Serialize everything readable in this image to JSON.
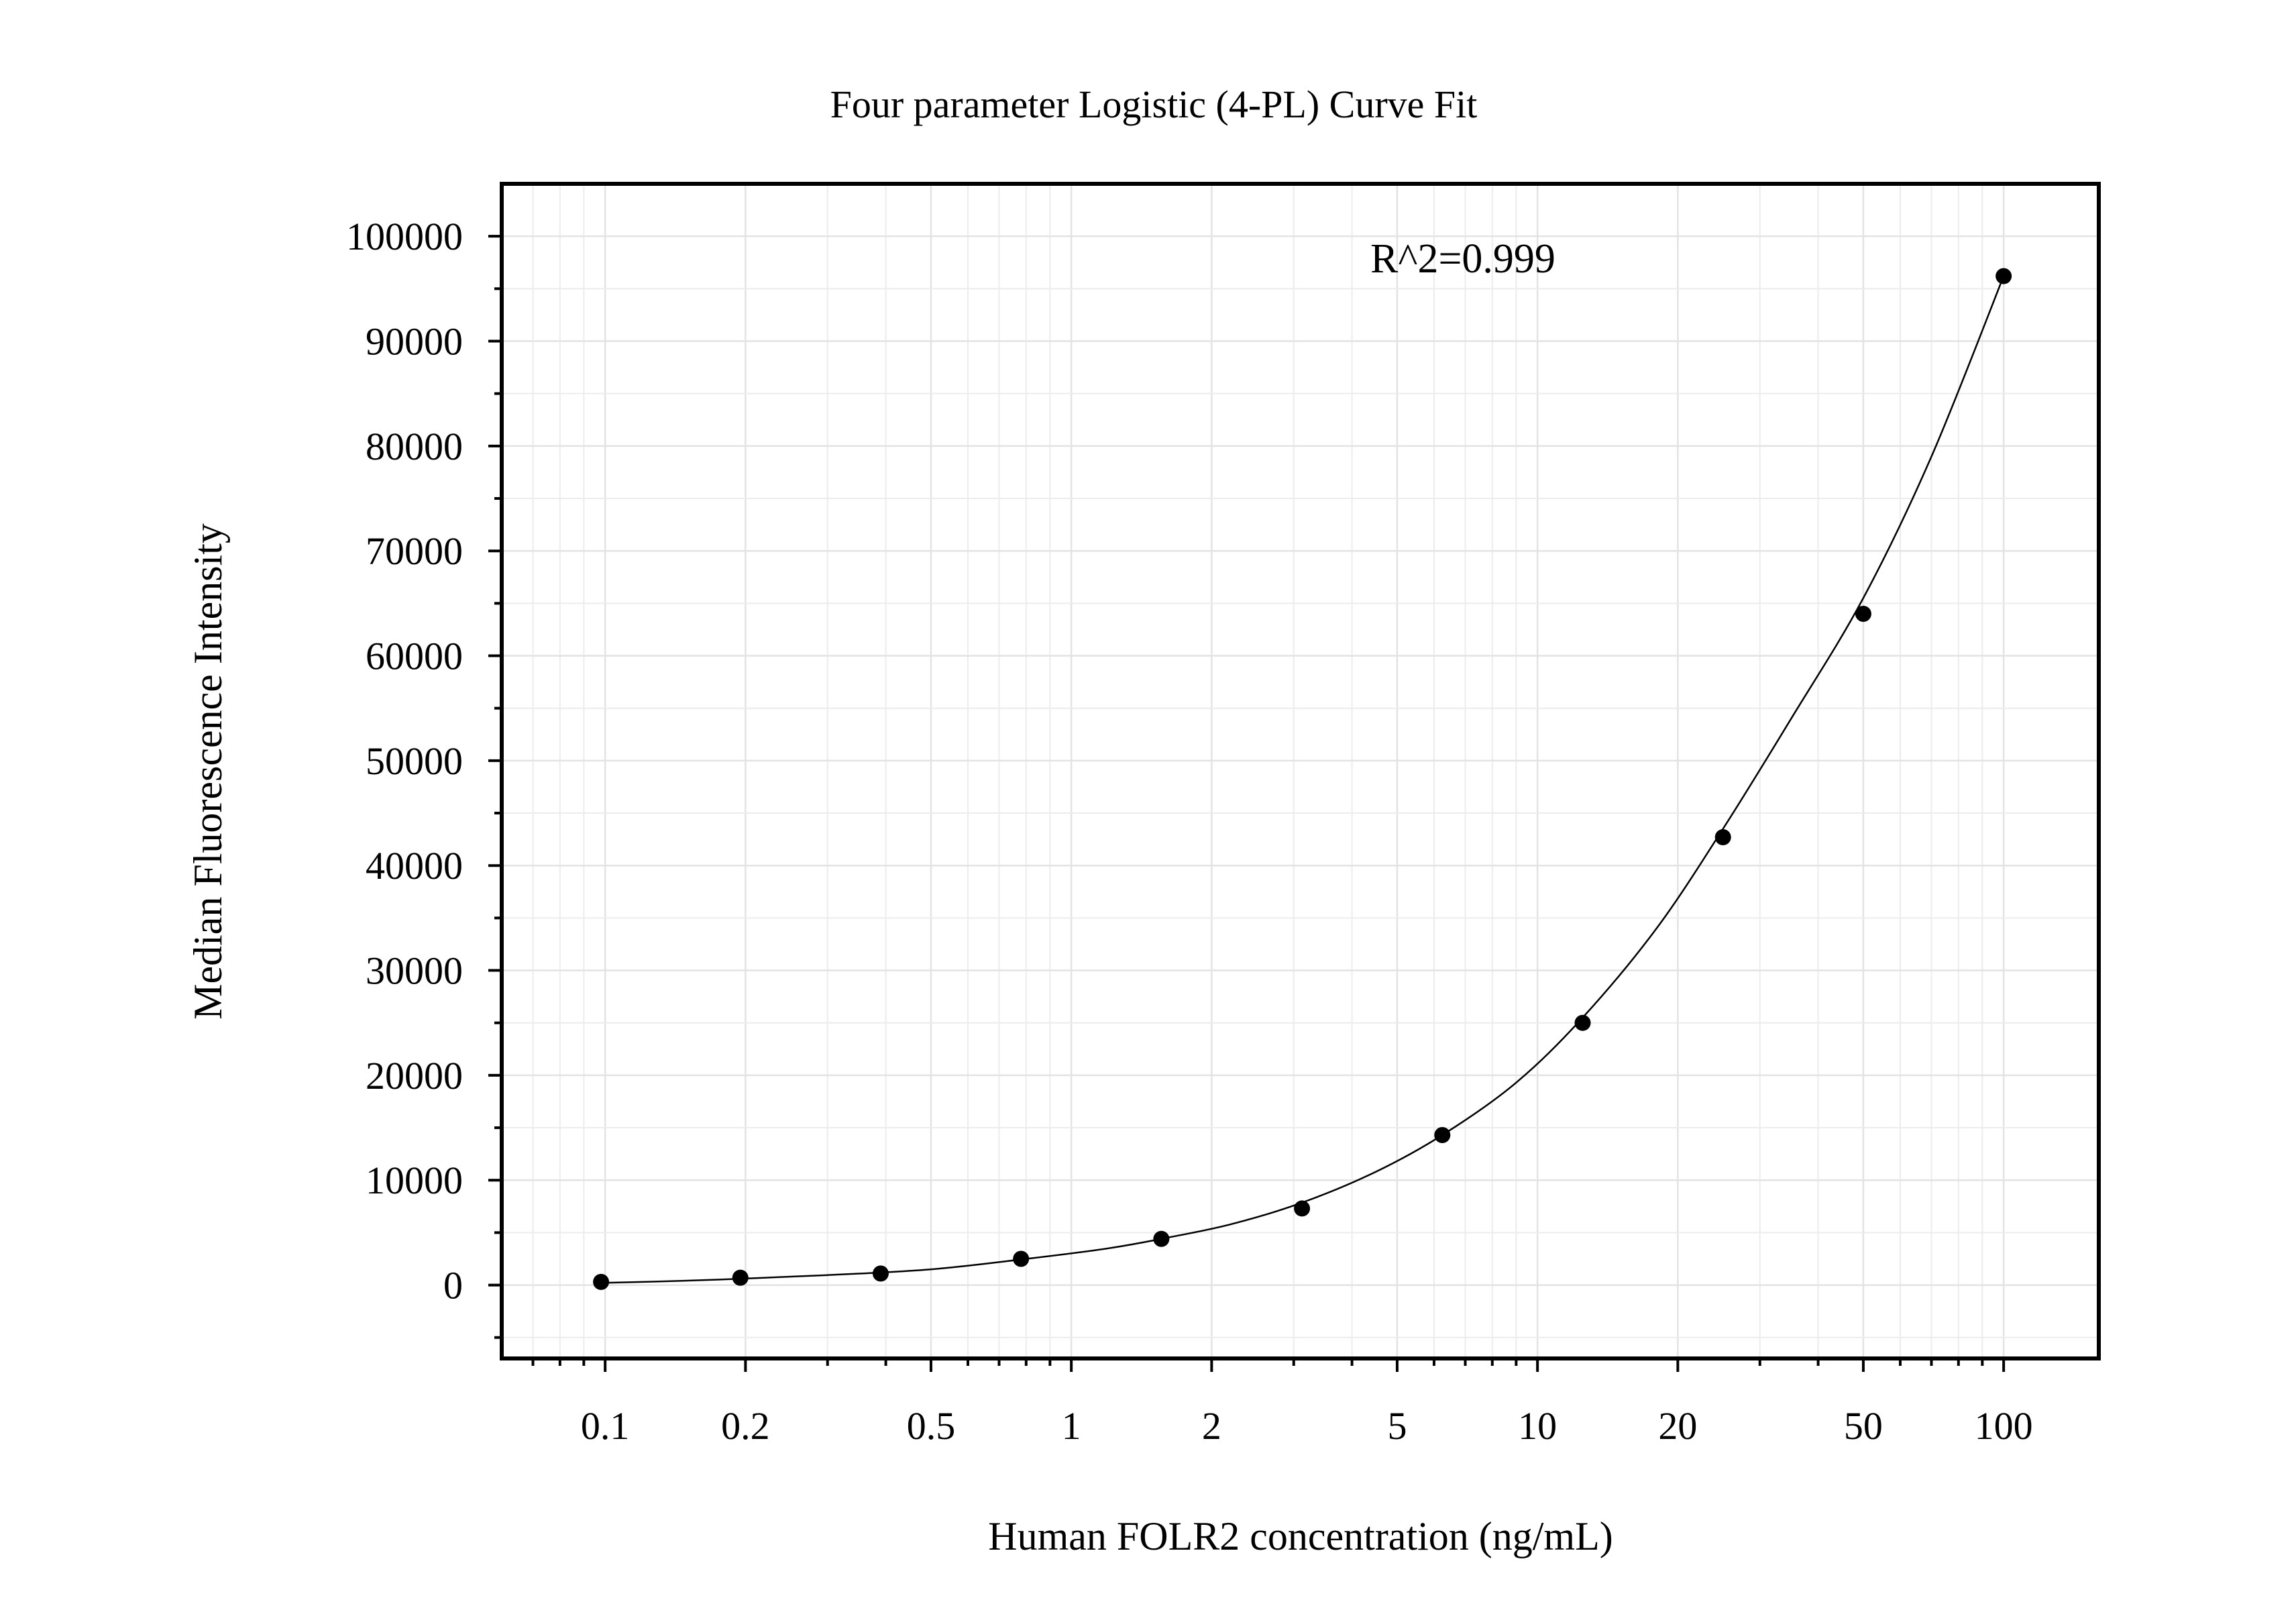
{
  "chart_data": {
    "type": "scatter",
    "title": "Four parameter Logistic (4-PL) Curve Fit",
    "xlabel": "Human FOLR2 concentration (ng/mL)",
    "ylabel": "Median Fluorescence Intensity",
    "x_scale": "log",
    "xlim": [
      0.06,
      160
    ],
    "ylim": [
      -7000,
      105000
    ],
    "x_ticks": [
      0.1,
      0.2,
      0.5,
      1,
      2,
      5,
      10,
      20,
      50,
      100
    ],
    "x_tick_labels": [
      "0.1",
      "0.2",
      "0.5",
      "1",
      "2",
      "5",
      "10",
      "20",
      "50",
      "100"
    ],
    "y_ticks": [
      0,
      10000,
      20000,
      30000,
      40000,
      50000,
      60000,
      70000,
      80000,
      90000,
      100000
    ],
    "y_tick_labels": [
      "0",
      "10000",
      "20000",
      "30000",
      "40000",
      "50000",
      "60000",
      "70000",
      "80000",
      "90000",
      "100000"
    ],
    "grid": true,
    "annotation": "R^2=0.999",
    "series": [
      {
        "x": [
          0.098,
          0.195,
          0.39,
          0.78,
          1.56,
          3.125,
          6.25,
          12.5,
          25,
          50,
          100
        ],
        "y": [
          300,
          700,
          1100,
          2500,
          4400,
          7300,
          14300,
          25000,
          42700,
          64000,
          96200
        ]
      }
    ],
    "fit_curve": {
      "type": "4-PL",
      "x": [
        0.098,
        0.15,
        0.2,
        0.3,
        0.5,
        0.8,
        1.2,
        1.6,
        2.2,
        3.1,
        4.5,
        6.3,
        9,
        12.5,
        18,
        25,
        35,
        50,
        70,
        100
      ],
      "y": [
        200,
        420,
        620,
        950,
        1500,
        2500,
        3500,
        4500,
        5800,
        7800,
        10800,
        14400,
        19300,
        25500,
        34000,
        43500,
        54000,
        65500,
        79000,
        96200
      ]
    }
  }
}
